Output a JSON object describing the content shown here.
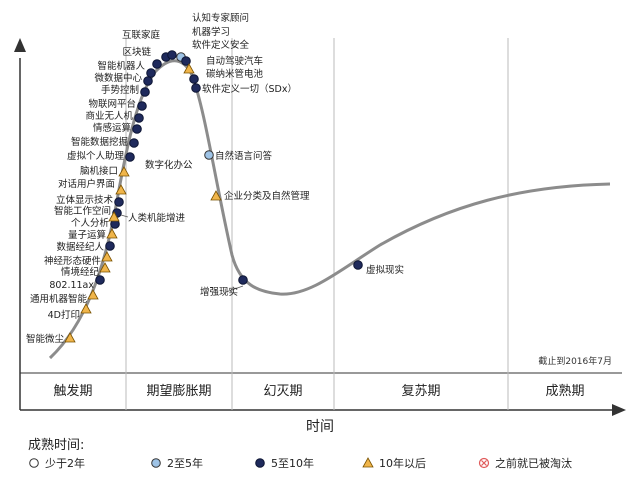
{
  "chart_data": {
    "type": "scatter",
    "x_axis_label": "时间",
    "as_of": "截止到2016年7月",
    "phases": [
      "触发期",
      "期望膨胀期",
      "幻灭期",
      "复苏期",
      "成熟期"
    ],
    "legend": {
      "title": "成熟时间:",
      "items": [
        {
          "code": "lt2",
          "label": "少于2年"
        },
        {
          "code": "2to5",
          "label": "2至5年"
        },
        {
          "code": "5to10",
          "label": "5至10年"
        },
        {
          "code": "gt10",
          "label": "10年以后"
        },
        {
          "code": "obsolete",
          "label": "之前就已被淘汰"
        }
      ]
    },
    "colors": {
      "curve": "#8c8c8c",
      "lt2": "#ffffff",
      "2to5": "#9ec3e6",
      "5to10": "#1f2a5c",
      "gt10": "#f0b54a",
      "obsolete": "#e05a5a",
      "divider": "#bbbbbb"
    },
    "points": [
      {
        "label": "智能微尘",
        "maturity": "gt10"
      },
      {
        "label": "4D打印",
        "maturity": "gt10"
      },
      {
        "label": "通用机器智能",
        "maturity": "gt10"
      },
      {
        "label": "802.11ax",
        "maturity": "5to10"
      },
      {
        "label": "情境经纪",
        "maturity": "gt10"
      },
      {
        "label": "神经形态硬件",
        "maturity": "gt10"
      },
      {
        "label": "数据经纪人",
        "maturity": "5to10"
      },
      {
        "label": "量子运算",
        "maturity": "gt10"
      },
      {
        "label": "个人分析",
        "maturity": "5to10"
      },
      {
        "label": "智能工作空间",
        "maturity": "5to10"
      },
      {
        "label": "立体显示技术",
        "maturity": "5to10"
      },
      {
        "label": "对话用户界面",
        "maturity": "gt10"
      },
      {
        "label": "脑机接口",
        "maturity": "gt10"
      },
      {
        "label": "虚拟个人助理",
        "maturity": "5to10"
      },
      {
        "label": "智能数据挖掘",
        "maturity": "5to10"
      },
      {
        "label": "情感运算",
        "maturity": "5to10"
      },
      {
        "label": "商业无人机",
        "maturity": "5to10"
      },
      {
        "label": "物联网平台",
        "maturity": "5to10"
      },
      {
        "label": "手势控制",
        "maturity": "5to10"
      },
      {
        "label": "微数据中心",
        "maturity": "5to10"
      },
      {
        "label": "智能机器人",
        "maturity": "5to10"
      },
      {
        "label": "区块链",
        "maturity": "5to10"
      },
      {
        "label": "互联家庭",
        "maturity": "5to10"
      },
      {
        "label": "认知专家顾问",
        "maturity": "5to10"
      },
      {
        "label": "机器学习",
        "maturity": "2to5"
      },
      {
        "label": "软件定义安全",
        "maturity": "5to10"
      },
      {
        "label": "自动驾驶汽车",
        "maturity": "gt10"
      },
      {
        "label": "碳纳米管电池",
        "maturity": "5to10"
      },
      {
        "label": "软件定义一切（SDx）",
        "maturity": "5to10"
      },
      {
        "label": "自然语言问答",
        "maturity": "2to5"
      },
      {
        "label": "企业分类及自然管理",
        "maturity": "gt10"
      },
      {
        "label": "增强现实",
        "maturity": "5to10"
      },
      {
        "label": "虚拟现实",
        "maturity": "5to10"
      },
      {
        "label": "数字化办公",
        "maturity": "5to10"
      },
      {
        "label": "人类机能增进",
        "maturity": "gt10"
      }
    ]
  }
}
